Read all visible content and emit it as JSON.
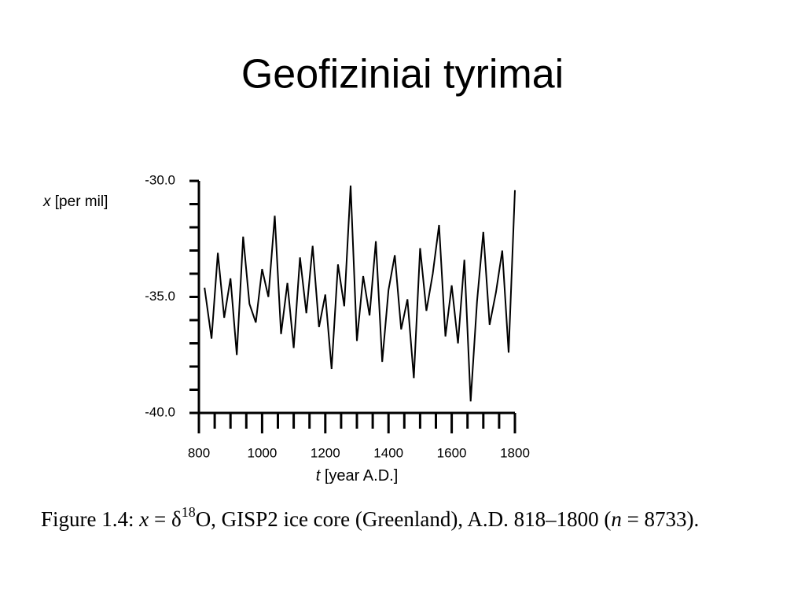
{
  "slide": {
    "title": "Geofiziniai tyrimai",
    "caption": [
      "Figure 1.4: ",
      "x",
      " = δ",
      "18",
      "O, GISP2 ice core (Greenland), A.D. 818–1800 (",
      "n",
      " = 8733)."
    ]
  },
  "chart_data": {
    "type": "line",
    "ylabel_var": "x",
    "ylabel_unit": "[per mil]",
    "xlabel_var": "t",
    "xlabel_unit": "[year A.D.]",
    "xlim": [
      800,
      1800
    ],
    "xticks": [
      800,
      1000,
      1200,
      1400,
      1600,
      1800
    ],
    "xminorticks": [
      850,
      900,
      950,
      1050,
      1100,
      1150,
      1250,
      1300,
      1350,
      1450,
      1500,
      1550,
      1650,
      1700,
      1750
    ],
    "ylim": [
      -40,
      -30
    ],
    "yticks": [
      {
        "value": -40,
        "label": "-40.0"
      },
      {
        "value": -35,
        "label": "-35.0"
      },
      {
        "value": -30,
        "label": "-30.0"
      }
    ],
    "yminorticks": [
      -39,
      -38,
      -37,
      -36,
      -34,
      -33,
      -32,
      -31
    ],
    "color": "#000000",
    "x": [
      818,
      840,
      860,
      880,
      900,
      920,
      940,
      960,
      980,
      1000,
      1020,
      1040,
      1060,
      1080,
      1100,
      1120,
      1140,
      1160,
      1180,
      1200,
      1220,
      1240,
      1260,
      1280,
      1300,
      1320,
      1340,
      1360,
      1380,
      1400,
      1420,
      1440,
      1460,
      1480,
      1500,
      1520,
      1540,
      1560,
      1580,
      1600,
      1620,
      1640,
      1660,
      1680,
      1700,
      1720,
      1740,
      1760,
      1780,
      1800
    ],
    "values": [
      -34.6,
      -36.8,
      -33.1,
      -35.9,
      -34.2,
      -37.5,
      -32.4,
      -35.3,
      -36.1,
      -33.8,
      -35.0,
      -31.5,
      -36.6,
      -34.4,
      -37.2,
      -33.3,
      -35.7,
      -32.8,
      -36.3,
      -34.9,
      -38.1,
      -33.6,
      -35.4,
      -30.2,
      -36.9,
      -34.1,
      -35.8,
      -32.6,
      -37.8,
      -34.7,
      -33.2,
      -36.4,
      -35.1,
      -38.5,
      -32.9,
      -35.6,
      -34.0,
      -31.9,
      -36.7,
      -34.5,
      -37.0,
      -33.4,
      -39.5,
      -35.2,
      -32.2,
      -36.2,
      -34.8,
      -33.0,
      -37.4,
      -30.4
    ]
  }
}
